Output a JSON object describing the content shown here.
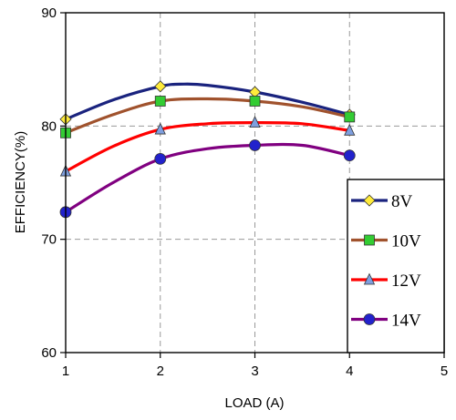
{
  "chart_data": {
    "type": "line",
    "title": "",
    "xlabel": "LOAD (A)",
    "ylabel": "EFFICIENCY(%)",
    "xlim": [
      1,
      5
    ],
    "ylim": [
      60,
      90
    ],
    "x_ticks": [
      "1",
      "2",
      "3",
      "4",
      "5"
    ],
    "y_ticks": [
      "60",
      "70",
      "80",
      "90"
    ],
    "grid": "dashed major gridlines",
    "legend_position": "bottom-right",
    "x": [
      1,
      2,
      3,
      4
    ],
    "series": [
      {
        "name": "8V",
        "values": [
          80.6,
          83.5,
          83.0,
          81.0
        ],
        "curve": [
          [
            1,
            80.6
          ],
          [
            1.5,
            82.3
          ],
          [
            2,
            83.5
          ],
          [
            2.25,
            83.7
          ],
          [
            2.5,
            83.6
          ],
          [
            3,
            83.0
          ],
          [
            3.5,
            82.1
          ],
          [
            4,
            81.0
          ]
        ],
        "color": "#1a237e",
        "marker": "diamond",
        "marker_color": "#ffeb3b"
      },
      {
        "name": "10V",
        "values": [
          79.4,
          82.2,
          82.2,
          80.8
        ],
        "curve": [
          [
            1,
            79.4
          ],
          [
            1.5,
            81.0
          ],
          [
            2,
            82.2
          ],
          [
            2.5,
            82.4
          ],
          [
            3,
            82.2
          ],
          [
            3.5,
            81.7
          ],
          [
            4,
            80.8
          ]
        ],
        "color": "#a0522d",
        "marker": "square",
        "marker_color": "#33cc33"
      },
      {
        "name": "12V",
        "values": [
          76.0,
          79.7,
          80.3,
          79.6
        ],
        "curve": [
          [
            1,
            76.0
          ],
          [
            1.5,
            78.2
          ],
          [
            2,
            79.7
          ],
          [
            2.5,
            80.2
          ],
          [
            3,
            80.3
          ],
          [
            3.5,
            80.2
          ],
          [
            4,
            79.6
          ]
        ],
        "color": "#ff0000",
        "marker": "triangle",
        "marker_color": "#7f9fdf"
      },
      {
        "name": "14V",
        "values": [
          72.4,
          77.1,
          78.3,
          77.4
        ],
        "curve": [
          [
            1,
            72.4
          ],
          [
            1.5,
            75.0
          ],
          [
            2,
            77.1
          ],
          [
            2.5,
            78.0
          ],
          [
            3,
            78.3
          ],
          [
            3.5,
            78.3
          ],
          [
            4,
            77.4
          ]
        ],
        "color": "#800080",
        "marker": "circle",
        "marker_color": "#2222cc"
      }
    ]
  }
}
